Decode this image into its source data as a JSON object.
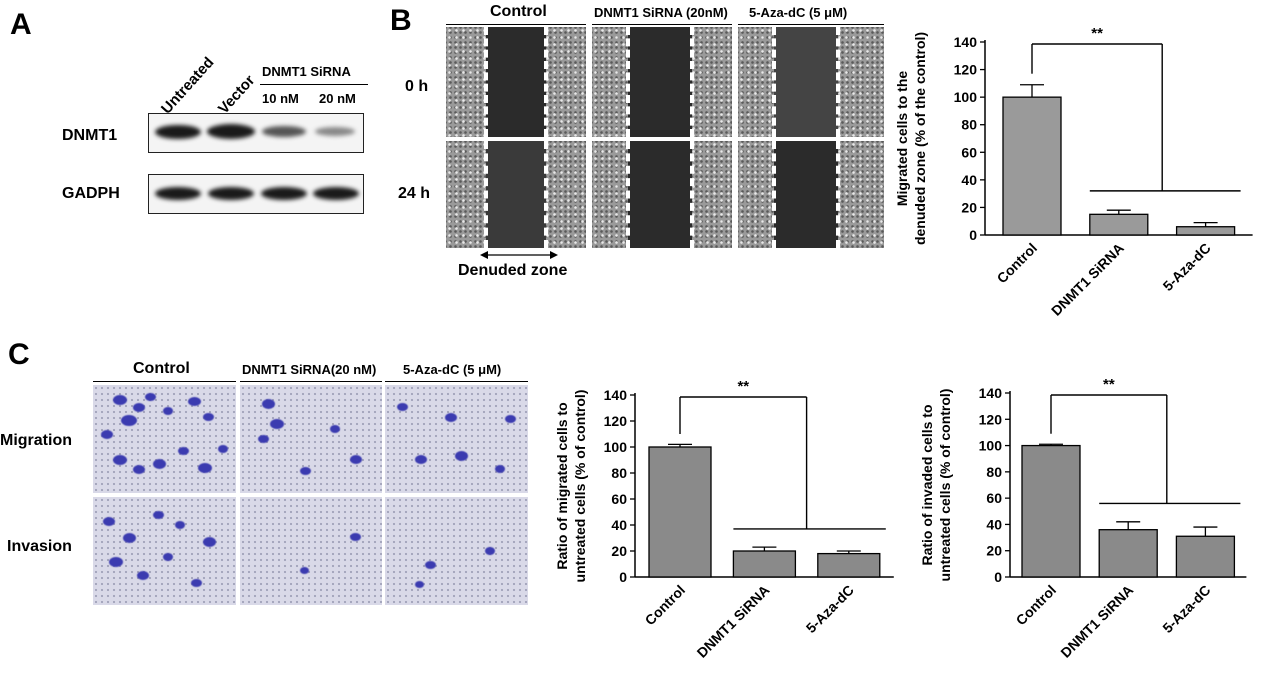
{
  "panel_labels": {
    "a": "A",
    "b": "B",
    "c": "C"
  },
  "panel_a": {
    "lane_labels": [
      "Untreated",
      "Vector"
    ],
    "sirna_header": "DNMT1 SiRNA",
    "sirna_doses": [
      "10 nM",
      "20 nM"
    ],
    "row_labels": [
      "DNMT1",
      "GADPH"
    ]
  },
  "panel_b": {
    "column_headers": [
      "Control",
      "DNMT1 SiRNA (20nM)",
      "5-Aza-dC (5 μM)"
    ],
    "row_labels": [
      "0 h",
      "24 h"
    ],
    "zone_label": "Denuded zone"
  },
  "panel_c": {
    "column_headers": [
      "Control",
      "DNMT1 SiRNA(20 nM)",
      "5-Aza-dC (5 μM)"
    ],
    "row_labels": [
      "Migration",
      "Invasion"
    ]
  },
  "chart_data": [
    {
      "type": "bar",
      "categories": [
        "Control",
        "DNMT1 SiRNA",
        "5-Aza-dC"
      ],
      "values": [
        100,
        15,
        6
      ],
      "errors": [
        9,
        3,
        3
      ],
      "ylabel_lines": [
        "Migrated cells to the",
        "denuded zone (% of the control)"
      ],
      "ylim": [
        0,
        140
      ],
      "yticks": [
        0,
        20,
        40,
        60,
        80,
        100,
        120,
        140
      ],
      "significance": "**",
      "bar_color": "#9a9a9a"
    },
    {
      "type": "bar",
      "categories": [
        "Control",
        "DNMT1 SiRNA",
        "5-Aza-dC"
      ],
      "values": [
        100,
        20,
        18
      ],
      "errors": [
        2,
        3,
        2
      ],
      "ylabel_lines": [
        "Ratio of  migrated  cells to",
        "untreated cells (% of control)"
      ],
      "ylim": [
        0,
        140
      ],
      "yticks": [
        0,
        20,
        40,
        60,
        80,
        100,
        120,
        140
      ],
      "significance": "**",
      "bar_color": "#8a8a8a"
    },
    {
      "type": "bar",
      "categories": [
        "Control",
        "DNMT1 SiRNA",
        "5-Aza-dC"
      ],
      "values": [
        100,
        36,
        31
      ],
      "errors": [
        1,
        6,
        7
      ],
      "ylabel_lines": [
        "Ratio of  invaded  cells to",
        "untreated cells (% of control)"
      ],
      "ylim": [
        0,
        140
      ],
      "yticks": [
        0,
        20,
        40,
        60,
        80,
        100,
        120,
        140
      ],
      "significance": "**",
      "bar_color": "#8a8a8a"
    }
  ]
}
